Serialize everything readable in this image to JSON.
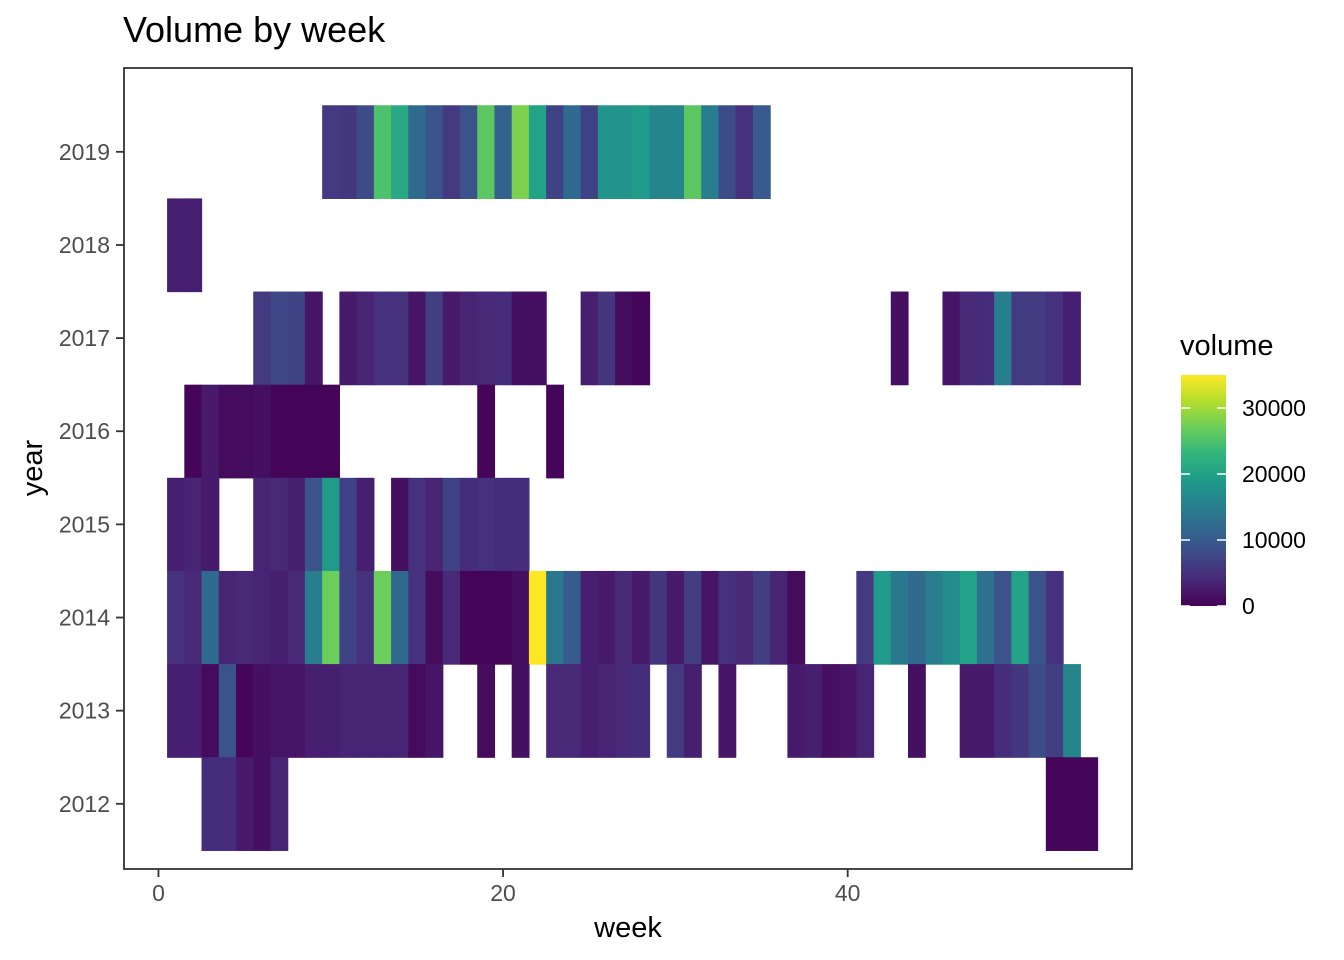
{
  "chart_data": {
    "type": "heatmap",
    "title": "Volume by week",
    "xlabel": "week",
    "ylabel": "year",
    "x_ticks": [
      0,
      20,
      40
    ],
    "y_ticks": [
      2012,
      2013,
      2014,
      2015,
      2016,
      2017,
      2018,
      2019
    ],
    "xlim": [
      -2,
      56.5
    ],
    "ylim": [
      2011.3,
      2019.9
    ],
    "legend": {
      "title": "volume",
      "placement": "right",
      "min": 0,
      "max": 35000,
      "ticks": [
        0,
        10000,
        20000,
        30000
      ]
    },
    "colors": {
      "panel_border": "#333333",
      "tick_mark": "#333333",
      "scale": [
        "#440154",
        "#482878",
        "#3e4989",
        "#31688e",
        "#26828e",
        "#1f9e89",
        "#35b779",
        "#6ece58",
        "#b5de2b",
        "#fde725"
      ]
    },
    "cells": [
      {
        "year": 2019,
        "values": [
          [
            10,
            6000
          ],
          [
            11,
            5500
          ],
          [
            12,
            8000
          ],
          [
            13,
            25000
          ],
          [
            14,
            21000
          ],
          [
            15,
            12000
          ],
          [
            16,
            9000
          ],
          [
            17,
            6000
          ],
          [
            18,
            9000
          ],
          [
            19,
            26000
          ],
          [
            20,
            11000
          ],
          [
            21,
            28000
          ],
          [
            22,
            20000
          ],
          [
            23,
            7000
          ],
          [
            24,
            12000
          ],
          [
            25,
            7000
          ],
          [
            26,
            18000
          ],
          [
            27,
            18000
          ],
          [
            28,
            19000
          ],
          [
            29,
            16000
          ],
          [
            30,
            16000
          ],
          [
            31,
            26000
          ],
          [
            32,
            15000
          ],
          [
            33,
            8000
          ],
          [
            34,
            5000
          ],
          [
            35,
            10000
          ]
        ]
      },
      {
        "year": 2018,
        "values": [
          [
            1,
            3000
          ],
          [
            2,
            3000
          ]
        ]
      },
      {
        "year": 2017,
        "values": [
          [
            6,
            6000
          ],
          [
            7,
            7500
          ],
          [
            8,
            7000
          ],
          [
            9,
            2000
          ],
          [
            11,
            2500
          ],
          [
            12,
            3500
          ],
          [
            13,
            5000
          ],
          [
            14,
            5000
          ],
          [
            15,
            2000
          ],
          [
            16,
            6500
          ],
          [
            17,
            2500
          ],
          [
            18,
            3500
          ],
          [
            19,
            4000
          ],
          [
            20,
            4500
          ],
          [
            21,
            1500
          ],
          [
            22,
            1500
          ],
          [
            25,
            3000
          ],
          [
            26,
            5500
          ],
          [
            27,
            1000
          ],
          [
            28,
            500
          ],
          [
            43,
            1500
          ],
          [
            46,
            2000
          ],
          [
            47,
            4000
          ],
          [
            48,
            4500
          ],
          [
            49,
            15000
          ],
          [
            50,
            6000
          ],
          [
            51,
            6000
          ],
          [
            52,
            5000
          ],
          [
            53,
            3000
          ]
        ]
      },
      {
        "year": 2016,
        "values": [
          [
            2,
            500
          ],
          [
            3,
            2500
          ],
          [
            4,
            1000
          ],
          [
            5,
            1000
          ],
          [
            6,
            1500
          ],
          [
            7,
            500
          ],
          [
            8,
            300
          ],
          [
            9,
            400
          ],
          [
            10,
            300
          ],
          [
            19,
            500
          ],
          [
            23,
            500
          ]
        ]
      },
      {
        "year": 2015,
        "values": [
          [
            1,
            3000
          ],
          [
            2,
            3500
          ],
          [
            3,
            2500
          ],
          [
            6,
            3500
          ],
          [
            7,
            4000
          ],
          [
            8,
            3000
          ],
          [
            9,
            9000
          ],
          [
            10,
            19000
          ],
          [
            11,
            7000
          ],
          [
            12,
            3000
          ],
          [
            14,
            1500
          ],
          [
            15,
            5000
          ],
          [
            16,
            3500
          ],
          [
            17,
            7000
          ],
          [
            18,
            4500
          ],
          [
            19,
            5000
          ],
          [
            20,
            4500
          ],
          [
            21,
            4500
          ]
        ]
      },
      {
        "year": 2014,
        "values": [
          [
            1,
            5000
          ],
          [
            2,
            4000
          ],
          [
            3,
            12000
          ],
          [
            4,
            3500
          ],
          [
            5,
            4000
          ],
          [
            6,
            3500
          ],
          [
            7,
            3000
          ],
          [
            8,
            4000
          ],
          [
            9,
            15000
          ],
          [
            10,
            27000
          ],
          [
            11,
            7000
          ],
          [
            12,
            5000
          ],
          [
            13,
            27000
          ],
          [
            14,
            12000
          ],
          [
            15,
            5000
          ],
          [
            16,
            1000
          ],
          [
            17,
            4000
          ],
          [
            18,
            400
          ],
          [
            19,
            400
          ],
          [
            20,
            500
          ],
          [
            21,
            1500
          ],
          [
            22,
            35000
          ],
          [
            23,
            14000
          ],
          [
            24,
            10000
          ],
          [
            25,
            3000
          ],
          [
            26,
            2500
          ],
          [
            27,
            4000
          ],
          [
            28,
            2500
          ],
          [
            29,
            5500
          ],
          [
            30,
            2500
          ],
          [
            31,
            6500
          ],
          [
            32,
            2000
          ],
          [
            33,
            5000
          ],
          [
            34,
            4000
          ],
          [
            35,
            6500
          ],
          [
            36,
            3500
          ],
          [
            37,
            1000
          ],
          [
            41,
            6000
          ],
          [
            42,
            19000
          ],
          [
            43,
            14000
          ],
          [
            44,
            12000
          ],
          [
            45,
            15000
          ],
          [
            46,
            17000
          ],
          [
            47,
            20000
          ],
          [
            48,
            13000
          ],
          [
            49,
            9000
          ],
          [
            50,
            20000
          ],
          [
            51,
            9000
          ],
          [
            52,
            5000
          ]
        ]
      },
      {
        "year": 2013,
        "values": [
          [
            1,
            3000
          ],
          [
            2,
            3000
          ],
          [
            3,
            1000
          ],
          [
            4,
            9000
          ],
          [
            5,
            500
          ],
          [
            6,
            1500
          ],
          [
            7,
            2000
          ],
          [
            8,
            2000
          ],
          [
            9,
            3000
          ],
          [
            10,
            3000
          ],
          [
            11,
            3500
          ],
          [
            12,
            3500
          ],
          [
            13,
            3500
          ],
          [
            14,
            3500
          ],
          [
            15,
            1000
          ],
          [
            16,
            2000
          ],
          [
            19,
            1000
          ],
          [
            21,
            1500
          ],
          [
            23,
            4000
          ],
          [
            24,
            4000
          ],
          [
            25,
            3000
          ],
          [
            26,
            3500
          ],
          [
            27,
            4000
          ],
          [
            28,
            4500
          ],
          [
            30,
            6000
          ],
          [
            31,
            3000
          ],
          [
            33,
            2000
          ],
          [
            37,
            2500
          ],
          [
            38,
            3000
          ],
          [
            39,
            1500
          ],
          [
            40,
            2000
          ],
          [
            41,
            3500
          ],
          [
            44,
            1500
          ],
          [
            47,
            2500
          ],
          [
            48,
            2500
          ],
          [
            49,
            4500
          ],
          [
            50,
            5500
          ],
          [
            51,
            8000
          ],
          [
            52,
            6500
          ],
          [
            53,
            16000
          ]
        ]
      },
      {
        "year": 2012,
        "values": [
          [
            3,
            4500
          ],
          [
            4,
            4500
          ],
          [
            5,
            2500
          ],
          [
            6,
            1500
          ],
          [
            7,
            3500
          ],
          [
            52,
            500
          ],
          [
            53,
            500
          ],
          [
            54,
            500
          ]
        ]
      }
    ]
  }
}
